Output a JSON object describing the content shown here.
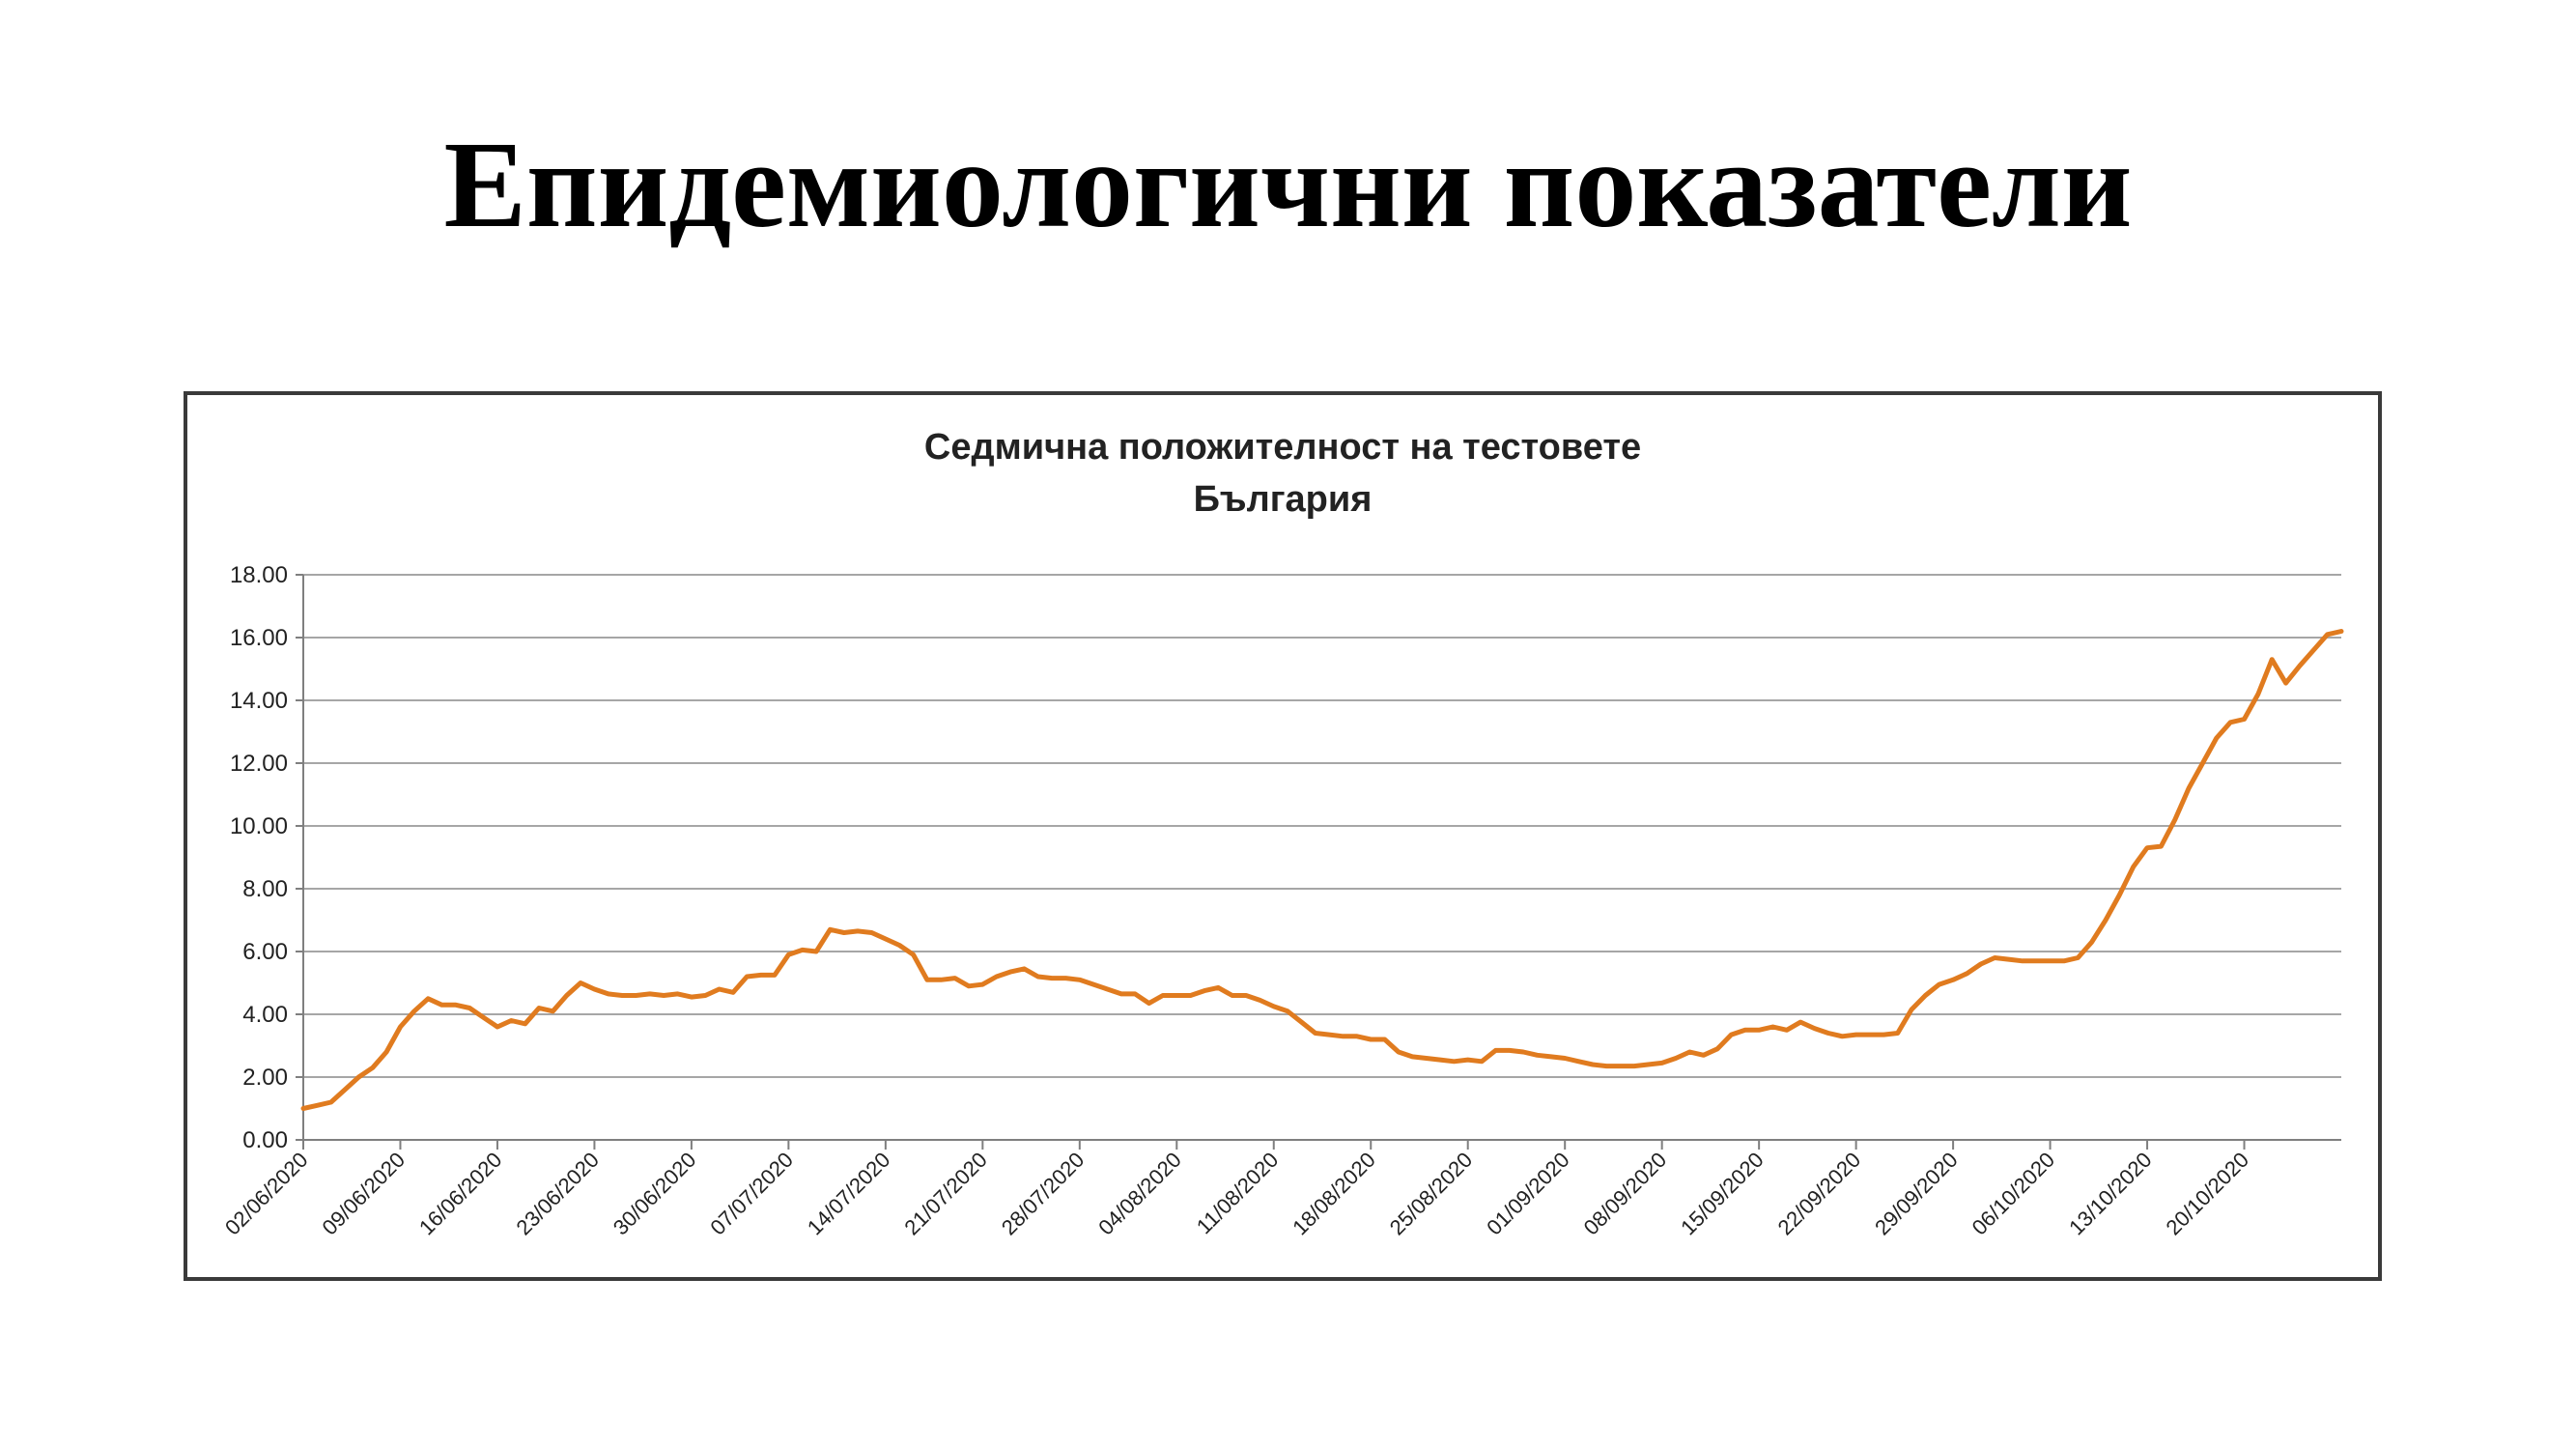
{
  "slide": {
    "title": "Епидемиологични показатели"
  },
  "chart_data": {
    "type": "line",
    "title": "Седмична положителност на тестовете",
    "subtitle": "България",
    "xlabel": "",
    "ylabel": "",
    "ylim": [
      0,
      18
    ],
    "y_ticks": [
      "0.00",
      "2.00",
      "4.00",
      "6.00",
      "8.00",
      "10.00",
      "12.00",
      "14.00",
      "16.00",
      "18.00"
    ],
    "x_ticks": [
      "02/06/2020",
      "09/06/2020",
      "16/06/2020",
      "23/06/2020",
      "30/06/2020",
      "07/07/2020",
      "14/07/2020",
      "21/07/2020",
      "28/07/2020",
      "04/08/2020",
      "11/08/2020",
      "18/08/2020",
      "25/08/2020",
      "01/09/2020",
      "08/09/2020",
      "15/09/2020",
      "22/09/2020",
      "29/09/2020",
      "06/10/2020",
      "13/10/2020",
      "20/10/2020"
    ],
    "x_range": [
      "02/06/2020",
      "27/10/2020"
    ],
    "grid": true,
    "legend": "none",
    "line_color": "#E07B1F",
    "series": [
      {
        "x": [
          "02/06/2020",
          "03/06/2020",
          "04/06/2020",
          "05/06/2020",
          "06/06/2020",
          "07/06/2020",
          "08/06/2020",
          "09/06/2020",
          "10/06/2020",
          "11/06/2020",
          "12/06/2020",
          "13/06/2020",
          "14/06/2020",
          "15/06/2020",
          "16/06/2020",
          "17/06/2020",
          "18/06/2020",
          "19/06/2020",
          "20/06/2020",
          "21/06/2020",
          "22/06/2020",
          "23/06/2020",
          "24/06/2020",
          "25/06/2020",
          "26/06/2020",
          "27/06/2020",
          "28/06/2020",
          "29/06/2020",
          "30/06/2020",
          "01/07/2020",
          "02/07/2020",
          "03/07/2020",
          "04/07/2020",
          "05/07/2020",
          "06/07/2020",
          "07/07/2020",
          "08/07/2020",
          "09/07/2020",
          "10/07/2020",
          "11/07/2020",
          "12/07/2020",
          "13/07/2020",
          "14/07/2020",
          "15/07/2020",
          "16/07/2020",
          "17/07/2020",
          "18/07/2020",
          "19/07/2020",
          "20/07/2020",
          "21/07/2020",
          "22/07/2020",
          "23/07/2020",
          "24/07/2020",
          "25/07/2020",
          "26/07/2020",
          "27/07/2020",
          "28/07/2020",
          "29/07/2020",
          "30/07/2020",
          "31/07/2020",
          "01/08/2020",
          "02/08/2020",
          "03/08/2020",
          "04/08/2020",
          "05/08/2020",
          "06/08/2020",
          "07/08/2020",
          "08/08/2020",
          "09/08/2020",
          "10/08/2020",
          "11/08/2020",
          "12/08/2020",
          "13/08/2020",
          "14/08/2020",
          "15/08/2020",
          "16/08/2020",
          "17/08/2020",
          "18/08/2020",
          "19/08/2020",
          "20/08/2020",
          "21/08/2020",
          "22/08/2020",
          "23/08/2020",
          "24/08/2020",
          "25/08/2020",
          "26/08/2020",
          "27/08/2020",
          "28/08/2020",
          "29/08/2020",
          "30/08/2020",
          "31/08/2020",
          "01/09/2020",
          "02/09/2020",
          "03/09/2020",
          "04/09/2020",
          "05/09/2020",
          "06/09/2020",
          "07/09/2020",
          "08/09/2020",
          "09/09/2020",
          "10/09/2020",
          "11/09/2020",
          "12/09/2020",
          "13/09/2020",
          "14/09/2020",
          "15/09/2020",
          "16/09/2020",
          "17/09/2020",
          "18/09/2020",
          "19/09/2020",
          "20/09/2020",
          "21/09/2020",
          "22/09/2020",
          "23/09/2020",
          "24/09/2020",
          "25/09/2020",
          "26/09/2020",
          "27/09/2020",
          "28/09/2020",
          "29/09/2020",
          "30/09/2020",
          "01/10/2020",
          "02/10/2020",
          "03/10/2020",
          "04/10/2020",
          "05/10/2020",
          "06/10/2020",
          "07/10/2020",
          "08/10/2020",
          "09/10/2020",
          "10/10/2020",
          "11/10/2020",
          "12/10/2020",
          "13/10/2020",
          "14/10/2020",
          "15/10/2020",
          "16/10/2020",
          "17/10/2020",
          "18/10/2020",
          "19/10/2020",
          "20/10/2020",
          "21/10/2020",
          "22/10/2020",
          "23/10/2020",
          "24/10/2020",
          "25/10/2020",
          "26/10/2020",
          "27/10/2020"
        ],
        "values": [
          1.0,
          1.1,
          1.2,
          1.6,
          2.0,
          2.3,
          2.8,
          3.6,
          4.1,
          4.5,
          4.3,
          4.3,
          4.2,
          3.9,
          3.6,
          3.8,
          3.7,
          4.2,
          4.1,
          4.6,
          5.0,
          4.8,
          4.65,
          4.6,
          4.6,
          4.65,
          4.6,
          4.65,
          4.55,
          4.6,
          4.8,
          4.7,
          5.2,
          5.25,
          5.25,
          5.9,
          6.05,
          6.0,
          6.7,
          6.6,
          6.65,
          6.6,
          6.4,
          6.2,
          5.9,
          5.1,
          5.1,
          5.15,
          4.9,
          4.95,
          5.2,
          5.35,
          5.45,
          5.2,
          5.15,
          5.15,
          5.1,
          4.95,
          4.8,
          4.65,
          4.65,
          4.35,
          4.6,
          4.6,
          4.6,
          4.75,
          4.85,
          4.6,
          4.6,
          4.45,
          4.25,
          4.1,
          3.75,
          3.4,
          3.35,
          3.3,
          3.3,
          3.2,
          3.2,
          2.8,
          2.65,
          2.6,
          2.55,
          2.5,
          2.55,
          2.5,
          2.85,
          2.85,
          2.8,
          2.7,
          2.65,
          2.6,
          2.5,
          2.4,
          2.35,
          2.35,
          2.35,
          2.4,
          2.45,
          2.6,
          2.8,
          2.7,
          2.9,
          3.35,
          3.5,
          3.5,
          3.6,
          3.5,
          3.75,
          3.55,
          3.4,
          3.3,
          3.35,
          3.35,
          3.35,
          3.4,
          4.15,
          4.6,
          4.95,
          5.1,
          5.3,
          5.6,
          5.8,
          5.75,
          5.7,
          5.7,
          5.7,
          5.7,
          5.8,
          6.3,
          7.0,
          7.8,
          8.7,
          9.3,
          9.35,
          10.2,
          11.2,
          12.0,
          12.8,
          13.3,
          13.4,
          14.2,
          15.3,
          14.55,
          15.1,
          15.6,
          16.1,
          16.2
        ]
      }
    ]
  }
}
